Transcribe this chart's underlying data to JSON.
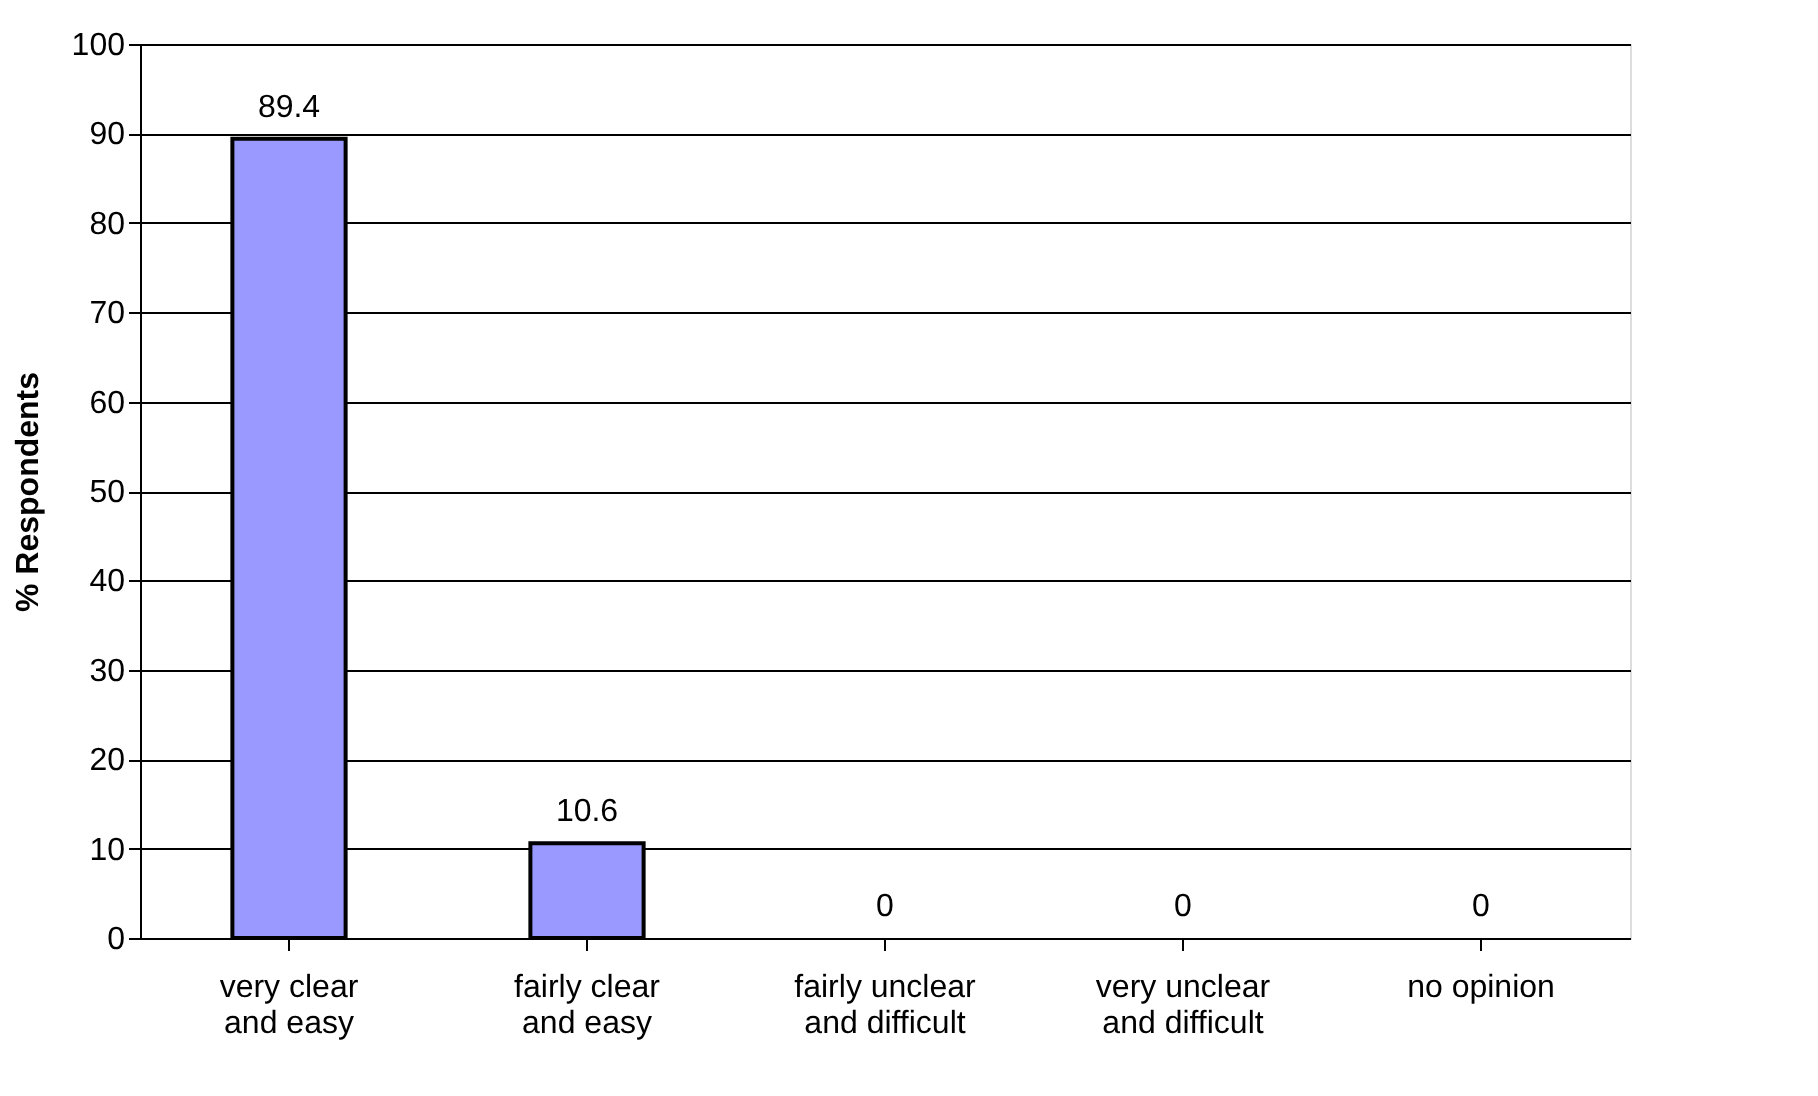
{
  "chart_data": {
    "type": "bar",
    "ylabel": "% Respondents",
    "categories": [
      "very clear\nand easy",
      "fairly clear\nand easy",
      "fairly unclear\nand difficult",
      "very unclear\nand difficult",
      "no opinion"
    ],
    "values": [
      89.4,
      10.6,
      0,
      0,
      0
    ],
    "color": "#9999ff",
    "ylim": [
      0,
      100
    ],
    "yticks": [
      0,
      10,
      20,
      30,
      40,
      50,
      60,
      70,
      80,
      90,
      100
    ],
    "grid": "y",
    "data_labels": true
  }
}
